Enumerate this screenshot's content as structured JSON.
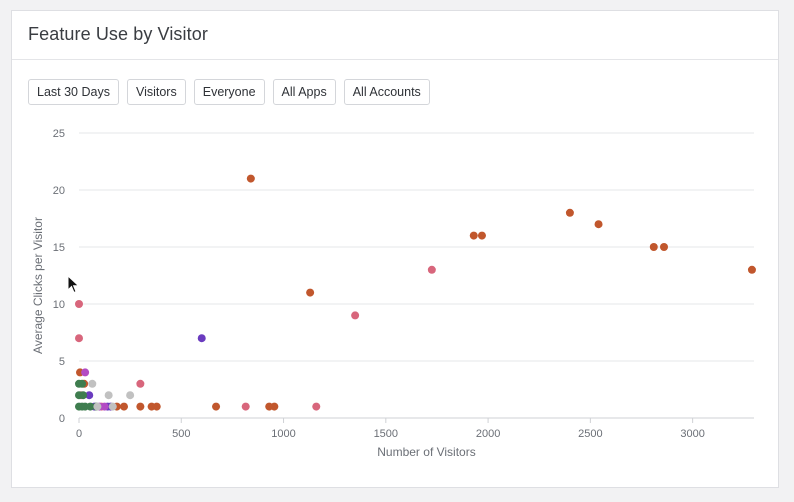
{
  "card": {
    "title": "Feature Use by Visitor"
  },
  "filters": [
    {
      "label": "Last 30 Days"
    },
    {
      "label": "Visitors"
    },
    {
      "label": "Everyone"
    },
    {
      "label": "All Apps"
    },
    {
      "label": "All Accounts"
    }
  ],
  "colors": {
    "orange": "#c1572d",
    "pink": "#d8667c",
    "purple": "#6a3bbf",
    "violet": "#b34bc4",
    "green": "#3f7d4f",
    "gray": "#c1c1c1"
  },
  "chart_data": {
    "type": "scatter",
    "xlabel": "Number of Visitors",
    "ylabel": "Average Clicks per Visitor",
    "xlim": [
      0,
      3300
    ],
    "ylim": [
      0,
      25
    ],
    "xticks": [
      "0",
      "500",
      "1000",
      "1500",
      "2000",
      "2500",
      "3000"
    ],
    "xtick_values": [
      0,
      500,
      1000,
      1500,
      2000,
      2500,
      3000
    ],
    "yticks": [
      "0",
      "5",
      "10",
      "15",
      "20",
      "25"
    ],
    "ytick_values": [
      0,
      5,
      10,
      15,
      20,
      25
    ],
    "grid": "horizontal",
    "points": [
      {
        "x": 840,
        "y": 21,
        "color": "orange"
      },
      {
        "x": 1130,
        "y": 11,
        "color": "orange"
      },
      {
        "x": 1930,
        "y": 16,
        "color": "orange"
      },
      {
        "x": 1970,
        "y": 16,
        "color": "orange"
      },
      {
        "x": 2400,
        "y": 18,
        "color": "orange"
      },
      {
        "x": 2540,
        "y": 17,
        "color": "orange"
      },
      {
        "x": 2810,
        "y": 15,
        "color": "orange"
      },
      {
        "x": 2860,
        "y": 15,
        "color": "orange"
      },
      {
        "x": 3290,
        "y": 13,
        "color": "orange"
      },
      {
        "x": 670,
        "y": 1,
        "color": "orange"
      },
      {
        "x": 930,
        "y": 1,
        "color": "orange"
      },
      {
        "x": 955,
        "y": 1,
        "color": "orange"
      },
      {
        "x": 300,
        "y": 1,
        "color": "orange"
      },
      {
        "x": 355,
        "y": 1,
        "color": "orange"
      },
      {
        "x": 380,
        "y": 1,
        "color": "orange"
      },
      {
        "x": 185,
        "y": 1,
        "color": "orange"
      },
      {
        "x": 220,
        "y": 1,
        "color": "orange"
      },
      {
        "x": 5,
        "y": 4,
        "color": "orange"
      },
      {
        "x": 25,
        "y": 3,
        "color": "orange"
      },
      {
        "x": 1725,
        "y": 13,
        "color": "pink"
      },
      {
        "x": 1350,
        "y": 9,
        "color": "pink"
      },
      {
        "x": 1160,
        "y": 1,
        "color": "pink"
      },
      {
        "x": 815,
        "y": 1,
        "color": "pink"
      },
      {
        "x": 300,
        "y": 3,
        "color": "pink"
      },
      {
        "x": 0,
        "y": 10,
        "color": "pink"
      },
      {
        "x": 0,
        "y": 7,
        "color": "pink"
      },
      {
        "x": 10,
        "y": 2,
        "color": "pink"
      },
      {
        "x": 110,
        "y": 1,
        "color": "pink"
      },
      {
        "x": 600,
        "y": 7,
        "color": "purple"
      },
      {
        "x": 50,
        "y": 2,
        "color": "purple"
      },
      {
        "x": 140,
        "y": 1,
        "color": "purple"
      },
      {
        "x": 155,
        "y": 1,
        "color": "purple"
      },
      {
        "x": 75,
        "y": 1,
        "color": "purple"
      },
      {
        "x": 30,
        "y": 4,
        "color": "violet"
      },
      {
        "x": 100,
        "y": 1,
        "color": "violet"
      },
      {
        "x": 125,
        "y": 1,
        "color": "violet"
      },
      {
        "x": 0,
        "y": 3,
        "color": "green"
      },
      {
        "x": 15,
        "y": 3,
        "color": "green"
      },
      {
        "x": 0,
        "y": 2,
        "color": "green"
      },
      {
        "x": 20,
        "y": 2,
        "color": "green"
      },
      {
        "x": 0,
        "y": 1,
        "color": "green"
      },
      {
        "x": 15,
        "y": 1,
        "color": "green"
      },
      {
        "x": 30,
        "y": 1,
        "color": "green"
      },
      {
        "x": 55,
        "y": 1,
        "color": "green"
      },
      {
        "x": 85,
        "y": 1,
        "color": "green"
      },
      {
        "x": 65,
        "y": 3,
        "color": "gray"
      },
      {
        "x": 145,
        "y": 2,
        "color": "gray"
      },
      {
        "x": 250,
        "y": 2,
        "color": "gray"
      },
      {
        "x": 90,
        "y": 1,
        "color": "gray"
      },
      {
        "x": 165,
        "y": 1,
        "color": "gray"
      }
    ]
  }
}
